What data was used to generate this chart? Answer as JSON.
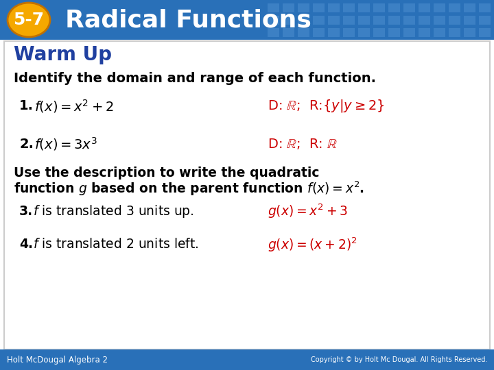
{
  "title_text": "Radical Functions",
  "chapter_label": "5-7",
  "header_bg_color": "#2970b8",
  "header_text_color": "#ffffff",
  "badge_color": "#f5a800",
  "badge_text_color": "#ffffff",
  "body_bg_color": "#ffffff",
  "body_border_color": "#cccccc",
  "warm_up_color": "#2040a0",
  "warm_up_text": "Warm Up",
  "instruction_text": "Identify the domain and range of each function.",
  "instruction_color": "#000000",
  "answer_color": "#cc0000",
  "black_color": "#000000",
  "footer_bg_color": "#2970b8",
  "footer_left": "Holt McDougal Algebra 2",
  "footer_right": "Copyright © by Holt Mc Dougal. All Rights Reserved.",
  "footer_text_color": "#ffffff",
  "grid_color": "#5090d0"
}
